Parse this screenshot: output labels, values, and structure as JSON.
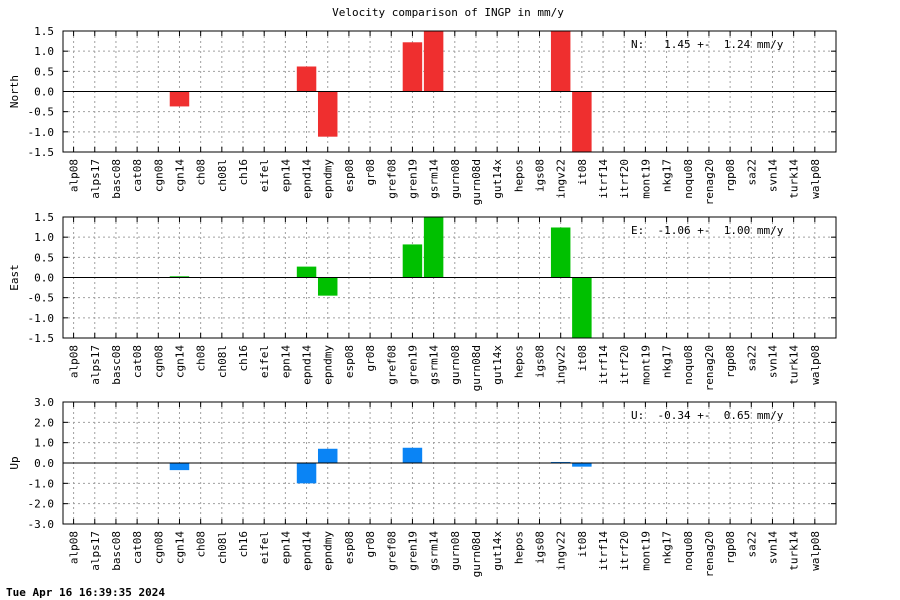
{
  "chart_data": [
    {
      "type": "bar",
      "title": "Velocity comparison of INGP in mm/y",
      "ylabel": "North",
      "ylim": [
        -1.5,
        1.5
      ],
      "yticks": [
        "1.5",
        "1.0",
        "0.5",
        "0.0",
        "-0.5",
        "-1.0",
        "-1.5"
      ],
      "grid": true,
      "color": "#ef2f2f",
      "stat_label": "N:   1.45 +-  1.24 mm/y",
      "categories": [
        "alp08",
        "alps17",
        "basc08",
        "cat08",
        "cgn08",
        "cgn14",
        "ch08",
        "ch08l",
        "ch16",
        "eifel",
        "epn14",
        "epnd14",
        "epndmy",
        "esp08",
        "gr08",
        "gref08",
        "gren19",
        "gsrm14",
        "gurn08",
        "gurn08d",
        "gut14x",
        "hepos",
        "igs08",
        "ingv22",
        "it08",
        "itrf14",
        "itrf20",
        "mont19",
        "nkg17",
        "noqu08",
        "renag20",
        "rgp08",
        "sa22",
        "svn14",
        "turk14",
        "walp08"
      ],
      "values": [
        0,
        0,
        0,
        0,
        0,
        -0.37,
        0,
        0,
        0,
        0,
        0,
        0.62,
        -1.12,
        0,
        0,
        0,
        1.22,
        1.5,
        0,
        0,
        0,
        0,
        0,
        1.5,
        -1.5,
        0,
        0,
        0,
        0,
        0,
        0,
        0,
        0,
        0,
        0,
        0
      ]
    },
    {
      "type": "bar",
      "ylabel": "East",
      "ylim": [
        -1.5,
        1.5
      ],
      "yticks": [
        "1.5",
        "1.0",
        "0.5",
        "0.0",
        "-0.5",
        "-1.0",
        "-1.5"
      ],
      "grid": true,
      "color": "#00c000",
      "stat_label": "E:  -1.06 +-  1.00 mm/y",
      "categories": [
        "alp08",
        "alps17",
        "basc08",
        "cat08",
        "cgn08",
        "cgn14",
        "ch08",
        "ch08l",
        "ch16",
        "eifel",
        "epn14",
        "epnd14",
        "epndmy",
        "esp08",
        "gr08",
        "gref08",
        "gren19",
        "gsrm14",
        "gurn08",
        "gurn08d",
        "gut14x",
        "hepos",
        "igs08",
        "ingv22",
        "it08",
        "itrf14",
        "itrf20",
        "mont19",
        "nkg17",
        "noqu08",
        "renag20",
        "rgp08",
        "sa22",
        "svn14",
        "turk14",
        "walp08"
      ],
      "values": [
        0,
        0,
        0,
        0,
        0,
        0.03,
        0,
        0,
        0,
        0,
        0,
        0.27,
        -0.45,
        0,
        0,
        0,
        0.82,
        1.5,
        0,
        0,
        0,
        0,
        0,
        1.24,
        -1.5,
        0,
        0,
        0,
        0,
        0,
        0,
        0,
        0,
        0,
        0,
        0
      ]
    },
    {
      "type": "bar",
      "ylabel": "Up",
      "ylim": [
        -3.0,
        3.0
      ],
      "yticks": [
        "3.0",
        "2.0",
        "1.0",
        "0.0",
        "-1.0",
        "-2.0",
        "-3.0"
      ],
      "grid": true,
      "color": "#0a84f5",
      "stat_label": "U:  -0.34 +-  0.65 mm/y",
      "categories": [
        "alp08",
        "alps17",
        "basc08",
        "cat08",
        "cgn08",
        "cgn14",
        "ch08",
        "ch08l",
        "ch16",
        "eifel",
        "epn14",
        "epnd14",
        "epndmy",
        "esp08",
        "gr08",
        "gref08",
        "gren19",
        "gsrm14",
        "gurn08",
        "gurn08d",
        "gut14x",
        "hepos",
        "igs08",
        "ingv22",
        "it08",
        "itrf14",
        "itrf20",
        "mont19",
        "nkg17",
        "noqu08",
        "renag20",
        "rgp08",
        "sa22",
        "svn14",
        "turk14",
        "walp08"
      ],
      "values": [
        0,
        0,
        0,
        0,
        0,
        -0.35,
        0,
        0,
        0,
        0,
        0,
        -1.0,
        0.7,
        0,
        0,
        0,
        0.75,
        0,
        0,
        0,
        0,
        0,
        0,
        0.05,
        -0.18,
        0,
        0,
        0,
        0,
        0,
        0,
        0,
        0,
        0,
        0,
        0
      ]
    }
  ],
  "footer": {
    "timestamp": "Tue Apr 16 16:39:35 2024"
  }
}
